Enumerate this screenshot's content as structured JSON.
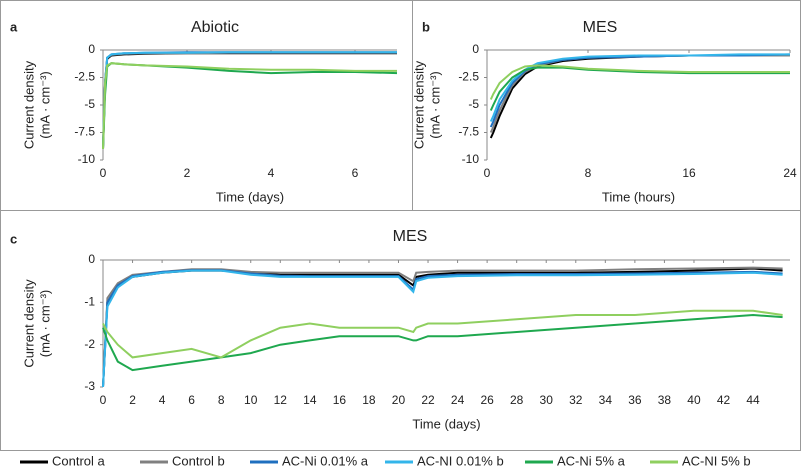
{
  "chart_data": [
    {
      "type": "line",
      "label": "a",
      "title": "Abiotic",
      "xlabel": "Time (days)",
      "ylabel": [
        "Current density",
        "(mA · cm⁻³)"
      ],
      "xlim": [
        0,
        7
      ],
      "xticks": [
        0,
        2,
        4,
        6
      ],
      "ylim": [
        -10,
        0
      ],
      "yticks": [
        -10,
        -7.5,
        -5,
        -2.5,
        0
      ],
      "x": [
        0,
        0.05,
        0.1,
        0.2,
        0.5,
        1,
        2,
        3,
        4,
        5,
        6,
        7
      ],
      "series": [
        {
          "name": "Control a",
          "color": "#000000",
          "values": [
            -9,
            -3,
            -0.8,
            -0.5,
            -0.4,
            -0.35,
            -0.3,
            -0.3,
            -0.3,
            -0.3,
            -0.3,
            -0.3
          ]
        },
        {
          "name": "Control b",
          "color": "#808080",
          "values": [
            -8.5,
            -2.8,
            -0.7,
            -0.45,
            -0.35,
            -0.3,
            -0.3,
            -0.25,
            -0.25,
            -0.25,
            -0.25,
            -0.25
          ]
        },
        {
          "name": "AC-Ni 0.01% a",
          "color": "#1f6fbf",
          "values": [
            -9,
            -3,
            -0.7,
            -0.4,
            -0.3,
            -0.25,
            -0.2,
            -0.2,
            -0.2,
            -0.2,
            -0.2,
            -0.2
          ]
        },
        {
          "name": "AC-NI 0.01% b",
          "color": "#33b5ea",
          "values": [
            -8.8,
            -2.9,
            -0.7,
            -0.4,
            -0.3,
            -0.25,
            -0.25,
            -0.2,
            -0.2,
            -0.2,
            -0.2,
            -0.2
          ]
        },
        {
          "name": "AC-Ni 5% a",
          "color": "#1fa84f",
          "values": [
            -9,
            -4,
            -1.5,
            -1.2,
            -1.3,
            -1.4,
            -1.6,
            -1.9,
            -2.1,
            -2.0,
            -2.0,
            -2.1
          ]
        },
        {
          "name": "AC-NI 5% b",
          "color": "#8fcf5f",
          "values": [
            -9,
            -3,
            -1.4,
            -1.2,
            -1.3,
            -1.4,
            -1.5,
            -1.7,
            -1.8,
            -1.8,
            -1.9,
            -1.9
          ]
        }
      ]
    },
    {
      "type": "line",
      "label": "b",
      "title": "MES",
      "xlabel": "Time (hours)",
      "ylabel": [
        "Current density",
        "(mA · cm⁻³)"
      ],
      "xlim": [
        0,
        24
      ],
      "xticks": [
        0,
        8,
        16,
        24
      ],
      "ylim": [
        -10,
        0
      ],
      "yticks": [
        -10,
        -7.5,
        -5,
        -2.5,
        0
      ],
      "x": [
        0.3,
        0.5,
        1,
        2,
        3,
        4,
        6,
        8,
        12,
        16,
        20,
        24
      ],
      "series": [
        {
          "name": "Control a",
          "color": "#000000",
          "values": [
            -8,
            -7.5,
            -6,
            -3.5,
            -2.2,
            -1.5,
            -1,
            -0.8,
            -0.6,
            -0.5,
            -0.5,
            -0.5
          ]
        },
        {
          "name": "Control b",
          "color": "#808080",
          "values": [
            -7.5,
            -7,
            -5.5,
            -3.2,
            -2,
            -1.4,
            -0.9,
            -0.7,
            -0.6,
            -0.5,
            -0.5,
            -0.5
          ]
        },
        {
          "name": "AC-Ni 0.01% a",
          "color": "#1f6fbf",
          "values": [
            -7,
            -6.5,
            -5,
            -3,
            -1.9,
            -1.3,
            -0.9,
            -0.7,
            -0.6,
            -0.5,
            -0.5,
            -0.4
          ]
        },
        {
          "name": "AC-NI 0.01% b",
          "color": "#33b5ea",
          "values": [
            -6.5,
            -6,
            -4.5,
            -2.8,
            -1.8,
            -1.2,
            -0.8,
            -0.6,
            -0.5,
            -0.5,
            -0.4,
            -0.4
          ]
        },
        {
          "name": "AC-Ni 5% a",
          "color": "#1fa84f",
          "values": [
            -5.5,
            -5,
            -3.8,
            -2.5,
            -1.8,
            -1.6,
            -1.6,
            -1.8,
            -2,
            -2.1,
            -2.1,
            -2.1
          ]
        },
        {
          "name": "AC-NI 5% b",
          "color": "#8fcf5f",
          "values": [
            -4.5,
            -4,
            -3,
            -2,
            -1.5,
            -1.4,
            -1.5,
            -1.7,
            -1.9,
            -2,
            -2,
            -2
          ]
        }
      ]
    },
    {
      "type": "line",
      "label": "c",
      "title": "MES",
      "xlabel": "Time (days)",
      "ylabel": [
        "Current density",
        "(mA · cm⁻³)"
      ],
      "xlim": [
        0,
        46.5
      ],
      "xticks": [
        0,
        2,
        4,
        6,
        8,
        10,
        12,
        14,
        16,
        18,
        20,
        22,
        24,
        26,
        28,
        30,
        32,
        34,
        36,
        38,
        40,
        42,
        44
      ],
      "ylim": [
        -3,
        0
      ],
      "yticks": [
        -3,
        -2,
        -1,
        0
      ],
      "x": [
        0,
        0.3,
        1,
        2,
        4,
        6,
        8,
        10,
        12,
        14,
        16,
        18,
        20,
        21,
        21.2,
        22,
        24,
        28,
        32,
        36,
        40,
        44,
        46
      ],
      "series": [
        {
          "name": "Control a",
          "color": "#000000",
          "values": [
            -3,
            -1,
            -0.6,
            -0.4,
            -0.3,
            -0.25,
            -0.25,
            -0.3,
            -0.35,
            -0.35,
            -0.35,
            -0.35,
            -0.35,
            -0.6,
            -0.4,
            -0.35,
            -0.3,
            -0.3,
            -0.3,
            -0.28,
            -0.25,
            -0.2,
            -0.25
          ]
        },
        {
          "name": "Control b",
          "color": "#808080",
          "values": [
            -3,
            -0.9,
            -0.55,
            -0.35,
            -0.28,
            -0.22,
            -0.22,
            -0.28,
            -0.3,
            -0.3,
            -0.3,
            -0.3,
            -0.3,
            -0.5,
            -0.3,
            -0.28,
            -0.25,
            -0.25,
            -0.25,
            -0.22,
            -0.2,
            -0.18,
            -0.2
          ]
        },
        {
          "name": "AC-Ni 0.01% a",
          "color": "#1f6fbf",
          "values": [
            -3,
            -1,
            -0.6,
            -0.38,
            -0.28,
            -0.24,
            -0.24,
            -0.32,
            -0.37,
            -0.38,
            -0.38,
            -0.38,
            -0.38,
            -0.7,
            -0.45,
            -0.38,
            -0.35,
            -0.33,
            -0.33,
            -0.32,
            -0.3,
            -0.28,
            -0.32
          ]
        },
        {
          "name": "AC-NI 0.01% b",
          "color": "#33b5ea",
          "values": [
            -3,
            -1.1,
            -0.65,
            -0.4,
            -0.3,
            -0.25,
            -0.25,
            -0.35,
            -0.4,
            -0.4,
            -0.4,
            -0.4,
            -0.4,
            -0.75,
            -0.5,
            -0.42,
            -0.38,
            -0.36,
            -0.36,
            -0.35,
            -0.33,
            -0.3,
            -0.35
          ]
        },
        {
          "name": "AC-Ni 5% a",
          "color": "#1fa84f",
          "values": [
            -1.6,
            -1.9,
            -2.4,
            -2.6,
            -2.5,
            -2.4,
            -2.3,
            -2.2,
            -2.0,
            -1.9,
            -1.8,
            -1.8,
            -1.8,
            -1.9,
            -1.9,
            -1.8,
            -1.8,
            -1.7,
            -1.6,
            -1.5,
            -1.4,
            -1.3,
            -1.35
          ]
        },
        {
          "name": "AC-NI 5% b",
          "color": "#8fcf5f",
          "values": [
            -1.5,
            -1.7,
            -2.0,
            -2.3,
            -2.2,
            -2.1,
            -2.3,
            -1.9,
            -1.6,
            -1.5,
            -1.6,
            -1.6,
            -1.6,
            -1.7,
            -1.6,
            -1.5,
            -1.5,
            -1.4,
            -1.3,
            -1.3,
            -1.2,
            -1.2,
            -1.3
          ]
        }
      ]
    }
  ]
}
